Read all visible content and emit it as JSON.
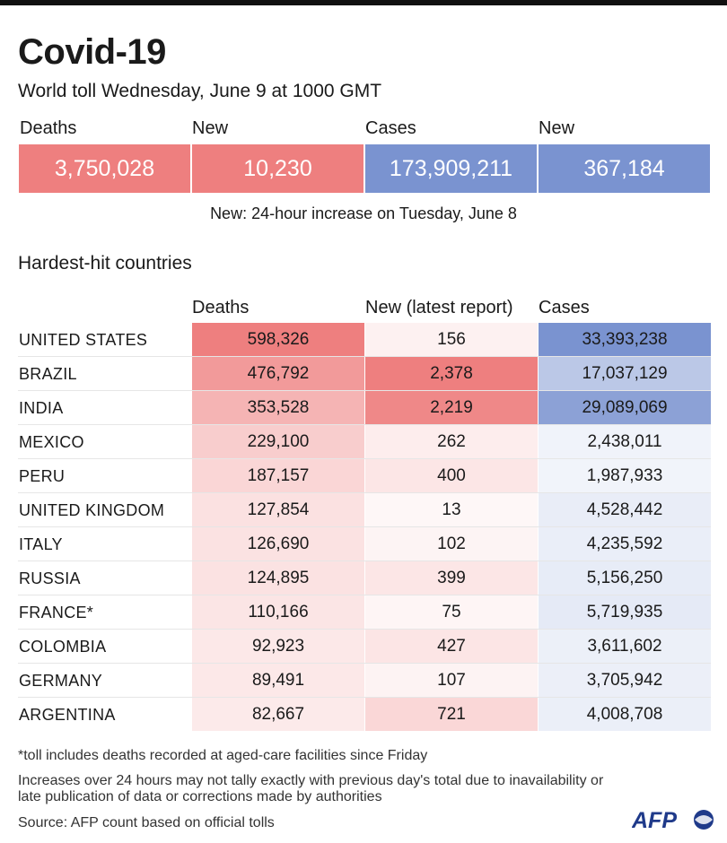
{
  "header": {
    "title": "Covid-19",
    "subtitle": "World toll Wednesday, June 9 at 1000 GMT"
  },
  "summary": {
    "deaths_label": "Deaths",
    "deaths_value": "3,750,028",
    "new_deaths_label": "New",
    "new_deaths_value": "10,230",
    "cases_label": "Cases",
    "cases_value": "173,909,211",
    "new_cases_label": "New",
    "new_cases_value": "367,184",
    "note": "New: 24-hour increase on Tuesday, June 8"
  },
  "colors": {
    "deaths_accent": "#ee7f7f",
    "cases_accent": "#7a93d0"
  },
  "chart_data": {
    "type": "table",
    "title": "Hardest-hit countries",
    "columns": [
      "Deaths",
      "New (latest report)",
      "Cases"
    ],
    "rows": [
      {
        "country": "UNITED STATES",
        "deaths": "598,326",
        "new": "156",
        "cases": "33,393,238"
      },
      {
        "country": "BRAZIL",
        "deaths": "476,792",
        "new": "2,378",
        "cases": "17,037,129"
      },
      {
        "country": "INDIA",
        "deaths": "353,528",
        "new": "2,219",
        "cases": "29,089,069"
      },
      {
        "country": "MEXICO",
        "deaths": "229,100",
        "new": "262",
        "cases": "2,438,011"
      },
      {
        "country": "PERU",
        "deaths": "187,157",
        "new": "400",
        "cases": "1,987,933"
      },
      {
        "country": "UNITED KINGDOM",
        "deaths": "127,854",
        "new": "13",
        "cases": "4,528,442"
      },
      {
        "country": "ITALY",
        "deaths": "126,690",
        "new": "102",
        "cases": "4,235,592"
      },
      {
        "country": "RUSSIA",
        "deaths": "124,895",
        "new": "399",
        "cases": "5,156,250"
      },
      {
        "country": "FRANCE*",
        "deaths": "110,166",
        "new": "75",
        "cases": "5,719,935"
      },
      {
        "country": "COLOMBIA",
        "deaths": "92,923",
        "new": "427",
        "cases": "3,611,602"
      },
      {
        "country": "GERMANY",
        "deaths": "89,491",
        "new": "107",
        "cases": "3,705,942"
      },
      {
        "country": "ARGENTINA",
        "deaths": "82,667",
        "new": "721",
        "cases": "4,008,708"
      }
    ]
  },
  "footer": {
    "asterisk_note": "*toll includes deaths recorded at aged-care facilities since Friday",
    "disclaimer": "Increases over 24 hours may not tally exactly with previous day's total due to inavailability or late publication of data or corrections made by authorities",
    "source": "Source: AFP count based on official tolls",
    "logo_text": "AFP"
  }
}
